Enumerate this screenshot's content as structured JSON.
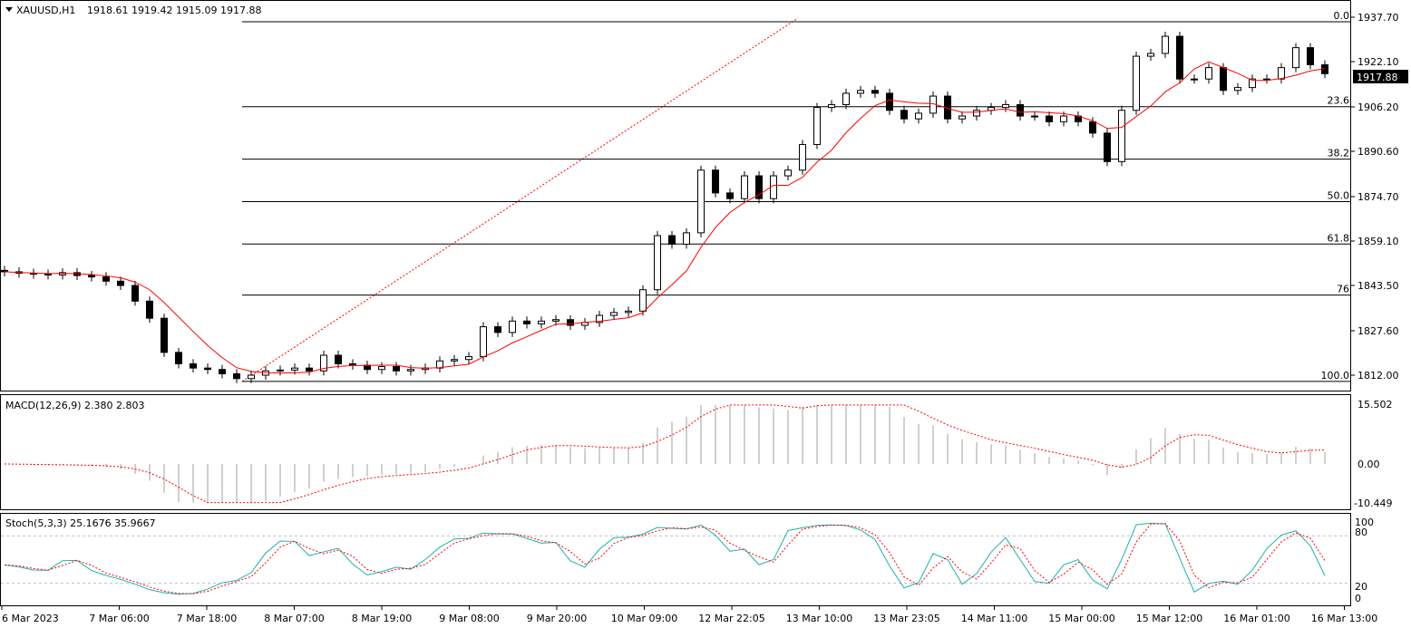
{
  "header": {
    "symbol": "XAUUSD,H1",
    "ohlc": "1918.61 1919.42 1915.09 1917.88"
  },
  "current_price": "1917.88",
  "colors": {
    "bull": "#ffffff",
    "bear": "#000000",
    "ma": "#ff0000",
    "macd_hist": "#c0c0c0",
    "signal": "#ff0000",
    "stoch_main": "#20b2aa",
    "stoch_signal": "#ff0000",
    "fib": "#000000"
  },
  "chart_data": [
    {
      "type": "candlestick",
      "title": "XAUUSD,H1",
      "price_axis_ticks": [
        "1937.70",
        "1922.10",
        "1906.20",
        "1890.60",
        "1874.70",
        "1859.10",
        "1843.50",
        "1827.60",
        "1812.00"
      ],
      "ylim": [
        1812.0,
        1937.7
      ],
      "x_tick_labels": [
        "6 Mar 2023",
        "7 Mar 06:00",
        "7 Mar 18:00",
        "8 Mar 07:00",
        "8 Mar 19:00",
        "9 Mar 08:00",
        "9 Mar 20:00",
        "10 Mar 09:00",
        "12 Mar 22:05",
        "13 Mar 10:00",
        "13 Mar 23:05",
        "14 Mar 11:00",
        "15 Mar 00:00",
        "15 Mar 12:00",
        "16 Mar 01:00",
        "16 Mar 13:00"
      ],
      "closes": [
        1848.3,
        1847.8,
        1847.5,
        1847.2,
        1848.0,
        1847.0,
        1846.5,
        1845.0,
        1843.5,
        1838,
        1832,
        1820,
        1816,
        1814.5,
        1814,
        1812.5,
        1810.8,
        1812,
        1813.5,
        1813.8,
        1814.5,
        1813.5,
        1819,
        1816,
        1815.5,
        1814,
        1815,
        1813.5,
        1814,
        1814.5,
        1817,
        1817.5,
        1818.5,
        1829,
        1827,
        1831,
        1830,
        1831,
        1831.5,
        1829.5,
        1830.5,
        1833,
        1834,
        1834.5,
        1842,
        1861,
        1858,
        1862,
        1884,
        1876,
        1874,
        1882,
        1874,
        1882,
        1884,
        1893,
        1906,
        1907,
        1911,
        1912,
        1911,
        1905,
        1902,
        1904,
        1910,
        1902,
        1903,
        1905,
        1906,
        1907,
        1903,
        1903,
        1901,
        1903,
        1901,
        1897,
        1887,
        1905,
        1924,
        1925,
        1931,
        1916,
        1916,
        1920,
        1912,
        1913,
        1916,
        1916,
        1920,
        1927,
        1921,
        1917.88
      ],
      "moving_average": true,
      "fibonacci": {
        "high": 1936.1,
        "low": 1809.8,
        "levels": [
          "0.0",
          "23.6",
          "38.2",
          "50.0",
          "61.8",
          "76",
          "100.0"
        ],
        "ratios": [
          0,
          0.236,
          0.382,
          0.5,
          0.618,
          0.76,
          1.0
        ]
      }
    },
    {
      "type": "bar",
      "title": "MACD(12,26,9) 2.380 2.803",
      "axis_ticks": [
        "15.502",
        "0.00",
        "-10.449"
      ],
      "ylim": [
        -10.449,
        15.502
      ]
    },
    {
      "type": "line",
      "title": "Stoch(5,3,3) 25.1676 35.9667",
      "axis_ticks": [
        "100",
        "80",
        "20",
        "0"
      ],
      "ylim": [
        0,
        100
      ],
      "levels": [
        20,
        80
      ]
    }
  ]
}
